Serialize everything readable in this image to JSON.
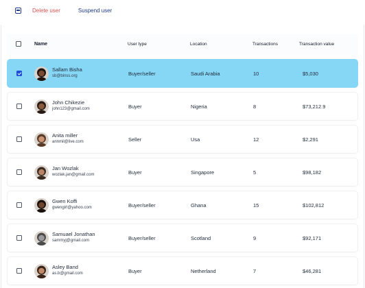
{
  "toolbar": {
    "delete_label": "Delete user",
    "suspend_label": "Suspend user"
  },
  "columns": {
    "name": "Name",
    "type": "User type",
    "location": "Location",
    "transactions": "Transactions",
    "value": "Transaction value"
  },
  "rows": [
    {
      "name": "Sallam Bisha",
      "email": "sb@binss.org",
      "type": "Buyer/seller",
      "location": "Saudi Arabia",
      "transactions": "10",
      "value": "$5,030",
      "selected": true,
      "skin": "#7a4a32",
      "hair": "#1f140f"
    },
    {
      "name": "John Chikezie",
      "email": "john123@gmail.com",
      "type": "Buyer",
      "location": "Nigeria",
      "transactions": "8",
      "value": "$73,212.9",
      "selected": false,
      "skin": "#8a5a3c",
      "hair": "#2a1c14"
    },
    {
      "name": "Anita miller",
      "email": "annmil@live.com",
      "type": "Seller",
      "location": "Usa",
      "transactions": "12",
      "value": "$2,291",
      "selected": false,
      "skin": "#c99575",
      "hair": "#5a3b28"
    },
    {
      "name": "Jan Wozlak",
      "email": "wozlak.jan@gmail.com",
      "type": "Buyer",
      "location": "Singapore",
      "transactions": "5",
      "value": "$98,182",
      "selected": false,
      "skin": "#b98466",
      "hair": "#3b2a1f"
    },
    {
      "name": "Gwen Koffi",
      "email": "gwengirl@yahoo.com",
      "type": "Buyer/seller",
      "location": "Ghana",
      "transactions": "15",
      "value": "$102,812",
      "selected": false,
      "skin": "#6e4630",
      "hair": "#1a110c"
    },
    {
      "name": "Samuael Jonathan",
      "email": "sammyj@gmail.com",
      "type": "Buyer/seller",
      "location": "Scotland",
      "transactions": "9",
      "value": "$92,171",
      "selected": false,
      "skin": "#9b9b9b",
      "hair": "#4b4b4b"
    },
    {
      "name": "Asley Band",
      "email": "as.b@gmail.com",
      "type": "Buyer",
      "location": "Netherland",
      "transactions": "7",
      "value": "$46,281",
      "selected": false,
      "skin": "#c08a6a",
      "hair": "#3a2418"
    }
  ]
}
